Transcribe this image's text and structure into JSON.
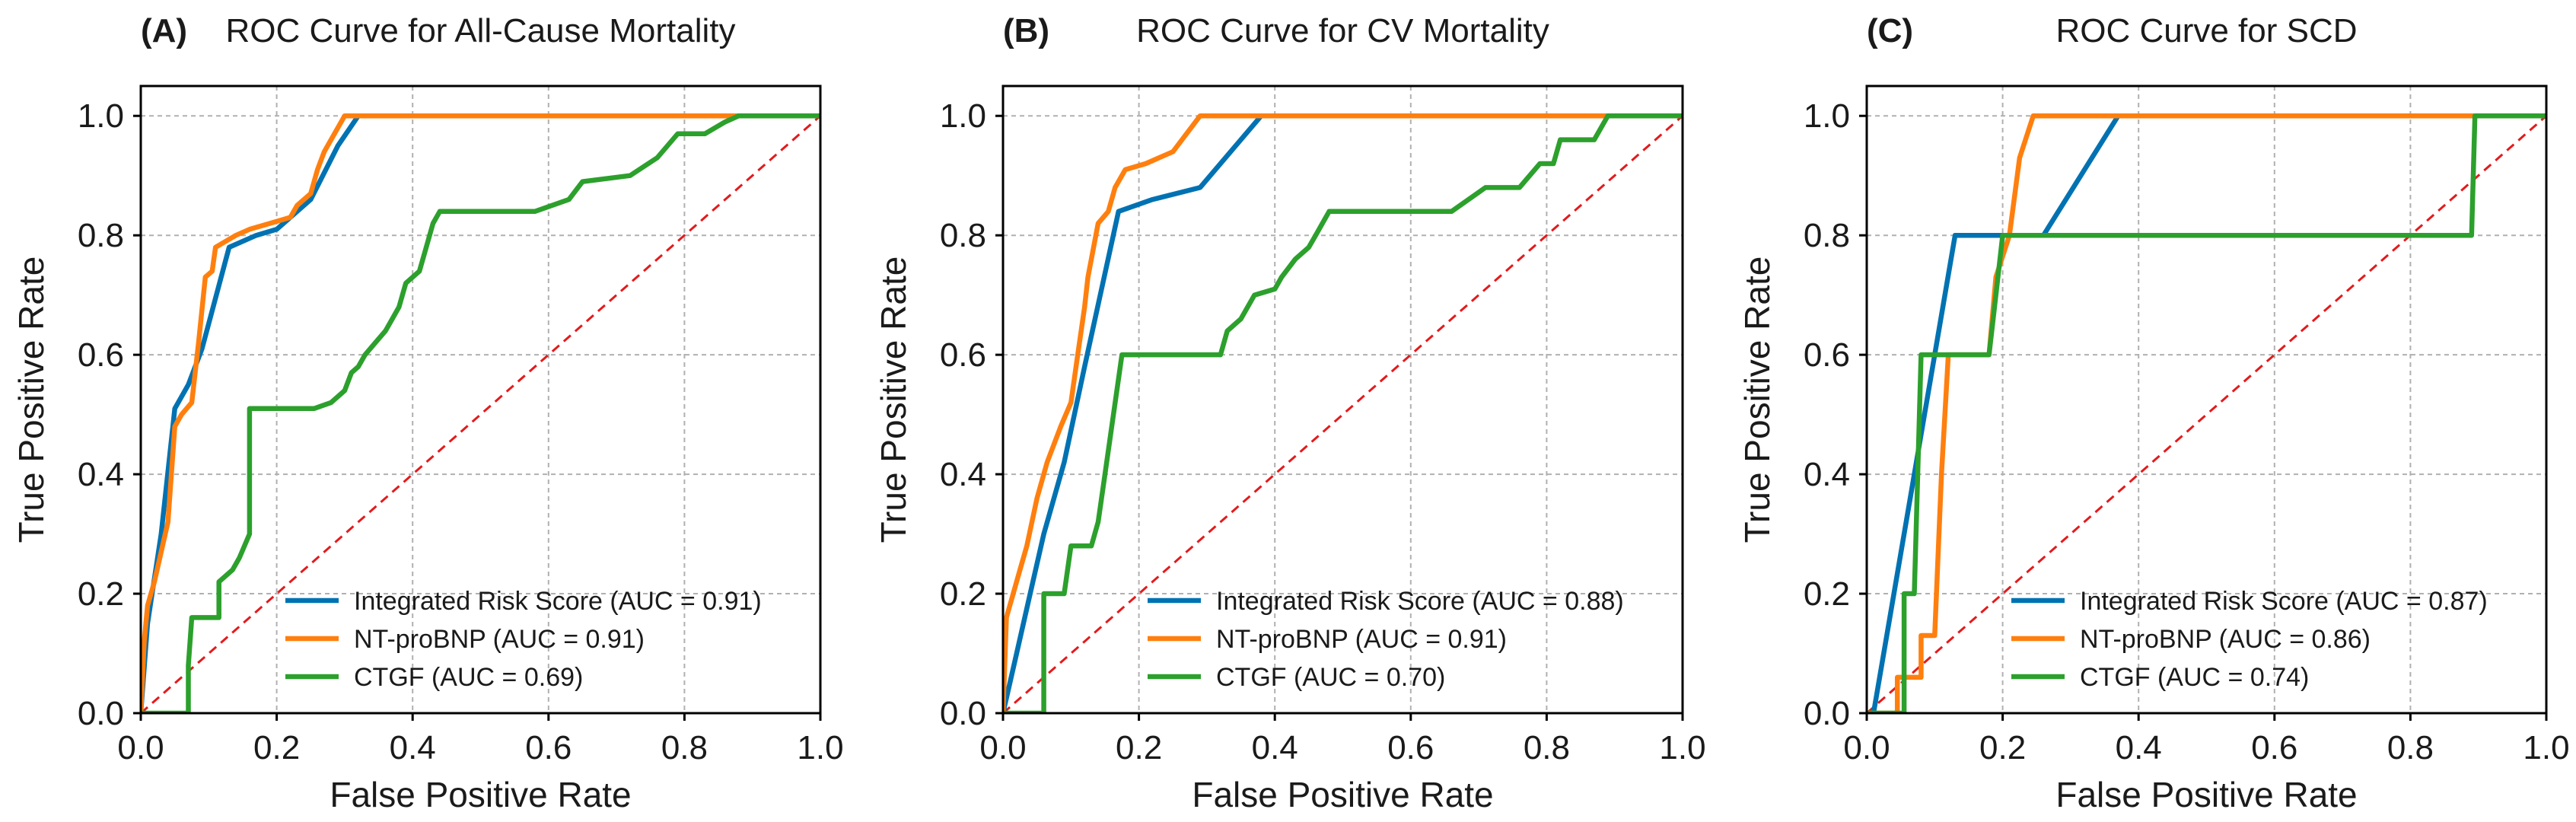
{
  "figure": {
    "type": "roc-panels",
    "panel_count": 3
  },
  "chart_data": [
    {
      "type": "line",
      "panel_label": "(A)",
      "title": "ROC Curve for All-Cause Mortality",
      "xlabel": "False Positive Rate",
      "ylabel": "True Positive Rate",
      "xlim": [
        0,
        1
      ],
      "ylim": [
        0,
        1.05
      ],
      "xticks": [
        "0.0",
        "0.2",
        "0.4",
        "0.6",
        "0.8",
        "1.0"
      ],
      "yticks": [
        "0.0",
        "0.2",
        "0.4",
        "0.6",
        "0.8",
        "1.0"
      ],
      "grid": true,
      "legend_position": "bottom-right",
      "series": [
        {
          "name": "Integrated Risk Score",
          "label": "Integrated Risk Score (AUC = 0.91)",
          "color": "#0072b2",
          "points": [
            [
              0,
              0
            ],
            [
              0.01,
              0.15
            ],
            [
              0.03,
              0.3
            ],
            [
              0.05,
              0.51
            ],
            [
              0.07,
              0.55
            ],
            [
              0.09,
              0.61
            ],
            [
              0.13,
              0.78
            ],
            [
              0.17,
              0.8
            ],
            [
              0.2,
              0.81
            ],
            [
              0.23,
              0.84
            ],
            [
              0.25,
              0.86
            ],
            [
              0.29,
              0.95
            ],
            [
              0.32,
              1.0
            ],
            [
              1.0,
              1.0
            ]
          ]
        },
        {
          "name": "NT-proBNP",
          "label": "NT-proBNP (AUC = 0.91)",
          "color": "#ff7f0e",
          "points": [
            [
              0,
              0
            ],
            [
              0.005,
              0.12
            ],
            [
              0.01,
              0.18
            ],
            [
              0.02,
              0.22
            ],
            [
              0.03,
              0.27
            ],
            [
              0.04,
              0.32
            ],
            [
              0.045,
              0.4
            ],
            [
              0.05,
              0.48
            ],
            [
              0.06,
              0.5
            ],
            [
              0.075,
              0.52
            ],
            [
              0.085,
              0.62
            ],
            [
              0.095,
              0.73
            ],
            [
              0.105,
              0.74
            ],
            [
              0.11,
              0.78
            ],
            [
              0.125,
              0.79
            ],
            [
              0.14,
              0.8
            ],
            [
              0.16,
              0.81
            ],
            [
              0.19,
              0.82
            ],
            [
              0.22,
              0.83
            ],
            [
              0.23,
              0.85
            ],
            [
              0.25,
              0.87
            ],
            [
              0.26,
              0.91
            ],
            [
              0.27,
              0.94
            ],
            [
              0.28,
              0.96
            ],
            [
              0.3,
              1.0
            ],
            [
              1.0,
              1.0
            ]
          ]
        },
        {
          "name": "CTGF",
          "label": "CTGF (AUC = 0.69)",
          "color": "#2ca02c",
          "points": [
            [
              0,
              0
            ],
            [
              0.07,
              0
            ],
            [
              0.07,
              0.08
            ],
            [
              0.075,
              0.16
            ],
            [
              0.115,
              0.16
            ],
            [
              0.115,
              0.22
            ],
            [
              0.135,
              0.24
            ],
            [
              0.145,
              0.26
            ],
            [
              0.16,
              0.3
            ],
            [
              0.16,
              0.51
            ],
            [
              0.255,
              0.51
            ],
            [
              0.28,
              0.52
            ],
            [
              0.3,
              0.54
            ],
            [
              0.31,
              0.57
            ],
            [
              0.32,
              0.58
            ],
            [
              0.33,
              0.6
            ],
            [
              0.345,
              0.62
            ],
            [
              0.36,
              0.64
            ],
            [
              0.37,
              0.66
            ],
            [
              0.38,
              0.68
            ],
            [
              0.39,
              0.72
            ],
            [
              0.41,
              0.74
            ],
            [
              0.42,
              0.78
            ],
            [
              0.43,
              0.82
            ],
            [
              0.44,
              0.84
            ],
            [
              0.58,
              0.84
            ],
            [
              0.63,
              0.86
            ],
            [
              0.65,
              0.89
            ],
            [
              0.72,
              0.9
            ],
            [
              0.76,
              0.93
            ],
            [
              0.79,
              0.97
            ],
            [
              0.83,
              0.97
            ],
            [
              0.86,
              0.99
            ],
            [
              0.88,
              1.0
            ],
            [
              1.0,
              1.0
            ]
          ]
        },
        {
          "name": "Reference",
          "label": "",
          "color": "#e41a1c",
          "dashed": true,
          "points": [
            [
              0,
              0
            ],
            [
              1,
              1
            ]
          ]
        }
      ]
    },
    {
      "type": "line",
      "panel_label": "(B)",
      "title": "ROC Curve for CV Mortality",
      "xlabel": "False Positive Rate",
      "ylabel": "True Positive Rate",
      "xlim": [
        0,
        1
      ],
      "ylim": [
        0,
        1.05
      ],
      "xticks": [
        "0.0",
        "0.2",
        "0.4",
        "0.6",
        "0.8",
        "1.0"
      ],
      "yticks": [
        "0.0",
        "0.2",
        "0.4",
        "0.6",
        "0.8",
        "1.0"
      ],
      "grid": true,
      "legend_position": "bottom-right",
      "series": [
        {
          "name": "Integrated Risk Score",
          "label": "Integrated Risk Score (AUC = 0.88)",
          "color": "#0072b2",
          "points": [
            [
              0,
              0
            ],
            [
              0.02,
              0.1
            ],
            [
              0.04,
              0.2
            ],
            [
              0.06,
              0.3
            ],
            [
              0.09,
              0.42
            ],
            [
              0.12,
              0.58
            ],
            [
              0.17,
              0.84
            ],
            [
              0.22,
              0.86
            ],
            [
              0.29,
              0.88
            ],
            [
              0.38,
              1.0
            ],
            [
              1.0,
              1.0
            ]
          ]
        },
        {
          "name": "NT-proBNP",
          "label": "NT-proBNP (AUC = 0.91)",
          "color": "#ff7f0e",
          "points": [
            [
              0,
              0
            ],
            [
              0.005,
              0.16
            ],
            [
              0.015,
              0.2
            ],
            [
              0.025,
              0.24
            ],
            [
              0.035,
              0.28
            ],
            [
              0.05,
              0.36
            ],
            [
              0.065,
              0.42
            ],
            [
              0.085,
              0.48
            ],
            [
              0.1,
              0.52
            ],
            [
              0.11,
              0.6
            ],
            [
              0.12,
              0.68
            ],
            [
              0.125,
              0.73
            ],
            [
              0.14,
              0.82
            ],
            [
              0.155,
              0.84
            ],
            [
              0.165,
              0.88
            ],
            [
              0.18,
              0.91
            ],
            [
              0.21,
              0.92
            ],
            [
              0.25,
              0.94
            ],
            [
              0.27,
              0.97
            ],
            [
              0.29,
              1.0
            ],
            [
              1.0,
              1.0
            ]
          ]
        },
        {
          "name": "CTGF",
          "label": "CTGF (AUC = 0.70)",
          "color": "#2ca02c",
          "points": [
            [
              0,
              0
            ],
            [
              0.06,
              0
            ],
            [
              0.06,
              0.2
            ],
            [
              0.09,
              0.2
            ],
            [
              0.1,
              0.28
            ],
            [
              0.13,
              0.28
            ],
            [
              0.14,
              0.32
            ],
            [
              0.15,
              0.4
            ],
            [
              0.16,
              0.48
            ],
            [
              0.175,
              0.6
            ],
            [
              0.32,
              0.6
            ],
            [
              0.33,
              0.64
            ],
            [
              0.35,
              0.66
            ],
            [
              0.37,
              0.7
            ],
            [
              0.4,
              0.71
            ],
            [
              0.41,
              0.73
            ],
            [
              0.43,
              0.76
            ],
            [
              0.45,
              0.78
            ],
            [
              0.46,
              0.8
            ],
            [
              0.47,
              0.82
            ],
            [
              0.48,
              0.84
            ],
            [
              0.66,
              0.84
            ],
            [
              0.71,
              0.88
            ],
            [
              0.76,
              0.88
            ],
            [
              0.79,
              0.92
            ],
            [
              0.81,
              0.92
            ],
            [
              0.82,
              0.96
            ],
            [
              0.87,
              0.96
            ],
            [
              0.89,
              1.0
            ],
            [
              1.0,
              1.0
            ]
          ]
        },
        {
          "name": "Reference",
          "label": "",
          "color": "#e41a1c",
          "dashed": true,
          "points": [
            [
              0,
              0
            ],
            [
              1,
              1
            ]
          ]
        }
      ]
    },
    {
      "type": "line",
      "panel_label": "(C)",
      "title": "ROC Curve for SCD",
      "xlabel": "False Positive Rate",
      "ylabel": "True Positive Rate",
      "xlim": [
        0,
        1
      ],
      "ylim": [
        0,
        1.05
      ],
      "xticks": [
        "0.0",
        "0.2",
        "0.4",
        "0.6",
        "0.8",
        "1.0"
      ],
      "yticks": [
        "0.0",
        "0.2",
        "0.4",
        "0.6",
        "0.8",
        "1.0"
      ],
      "grid": true,
      "legend_position": "bottom-right",
      "series": [
        {
          "name": "Integrated Risk Score",
          "label": "Integrated Risk Score (AUC = 0.87)",
          "color": "#0072b2",
          "points": [
            [
              0,
              0
            ],
            [
              0.01,
              0
            ],
            [
              0.13,
              0.8
            ],
            [
              0.26,
              0.8
            ],
            [
              0.37,
              1.0
            ],
            [
              1.0,
              1.0
            ]
          ]
        },
        {
          "name": "NT-proBNP",
          "label": "NT-proBNP (AUC = 0.86)",
          "color": "#ff7f0e",
          "points": [
            [
              0,
              0
            ],
            [
              0.045,
              0
            ],
            [
              0.045,
              0.06
            ],
            [
              0.08,
              0.06
            ],
            [
              0.08,
              0.13
            ],
            [
              0.1,
              0.13
            ],
            [
              0.11,
              0.4
            ],
            [
              0.12,
              0.6
            ],
            [
              0.18,
              0.6
            ],
            [
              0.19,
              0.73
            ],
            [
              0.21,
              0.8
            ],
            [
              0.225,
              0.93
            ],
            [
              0.245,
              1.0
            ],
            [
              1.0,
              1.0
            ]
          ]
        },
        {
          "name": "CTGF",
          "label": "CTGF (AUC = 0.74)",
          "color": "#2ca02c",
          "points": [
            [
              0,
              0
            ],
            [
              0.055,
              0
            ],
            [
              0.055,
              0.2
            ],
            [
              0.07,
              0.2
            ],
            [
              0.075,
              0.4
            ],
            [
              0.08,
              0.6
            ],
            [
              0.18,
              0.6
            ],
            [
              0.19,
              0.7
            ],
            [
              0.2,
              0.8
            ],
            [
              0.89,
              0.8
            ],
            [
              0.895,
              1.0
            ],
            [
              1.0,
              1.0
            ]
          ]
        },
        {
          "name": "Reference",
          "label": "",
          "color": "#e41a1c",
          "dashed": true,
          "points": [
            [
              0,
              0
            ],
            [
              1,
              1
            ]
          ]
        }
      ]
    }
  ]
}
